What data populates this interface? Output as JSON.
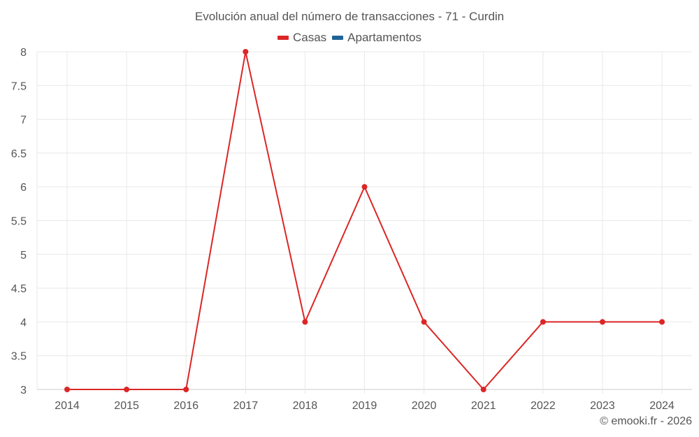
{
  "title": "Evolución anual del número de transacciones - 71 - Curdin",
  "legend": [
    {
      "label": "Casas",
      "color": "#dc2626"
    },
    {
      "label": "Apartamentos",
      "color": "#1f6396"
    }
  ],
  "credit": "© emooki.fr - 2026",
  "chart_data": {
    "type": "line",
    "title": "Evolución anual del número de transacciones - 71 - Curdin",
    "xlabel": "",
    "ylabel": "",
    "categories": [
      "2014",
      "2015",
      "2016",
      "2017",
      "2018",
      "2019",
      "2020",
      "2021",
      "2022",
      "2023",
      "2024"
    ],
    "series": [
      {
        "name": "Casas",
        "color": "#dc2626",
        "values": [
          3,
          3,
          3,
          8,
          4,
          6,
          4,
          3,
          4,
          4,
          4
        ]
      },
      {
        "name": "Apartamentos",
        "color": "#1f6396",
        "values": []
      }
    ],
    "ylim": [
      3,
      8
    ],
    "yticks": [
      "3",
      "3.5",
      "4",
      "4.5",
      "5",
      "5.5",
      "6",
      "6.5",
      "7",
      "7.5",
      "8"
    ],
    "grid": true,
    "legend_position": "top"
  }
}
